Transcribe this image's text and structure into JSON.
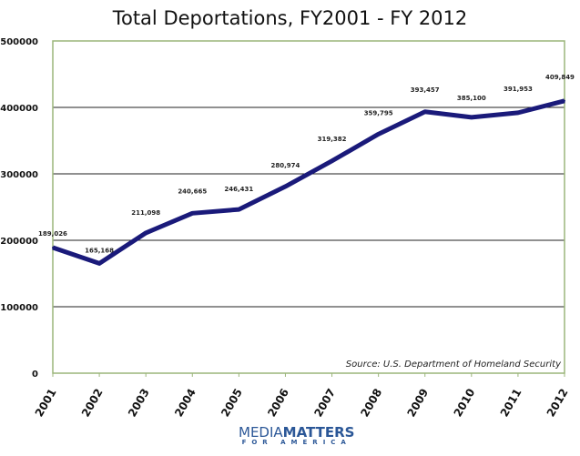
{
  "chart_data": {
    "type": "line",
    "title": "Total Deportations, FY2001 - FY 2012",
    "categories": [
      "2001",
      "2002",
      "2003",
      "2004",
      "2005",
      "2006",
      "2007",
      "2008",
      "2009",
      "2010",
      "2011",
      "2012"
    ],
    "values": [
      189026,
      165168,
      211098,
      240665,
      246431,
      280974,
      319382,
      359795,
      393457,
      385100,
      391953,
      409849
    ],
    "data_labels": [
      "189,026",
      "165,168",
      "211,098",
      "240,665",
      "246,431",
      "280,974",
      "319,382",
      "359,795",
      "393,457",
      "385,100",
      "391,953",
      "409,849"
    ],
    "yticks": [
      "0",
      "100000",
      "200000",
      "300000",
      "400000",
      "500000"
    ],
    "ylim": [
      0,
      500000
    ],
    "annotation": "Source: U.S. Department of Homeland Security",
    "line_color": "#1a1a7a",
    "grid": true
  },
  "logo": {
    "line1a": "MEDIA",
    "line1b": "MATTERS",
    "line2": "FOR AMERICA"
  }
}
